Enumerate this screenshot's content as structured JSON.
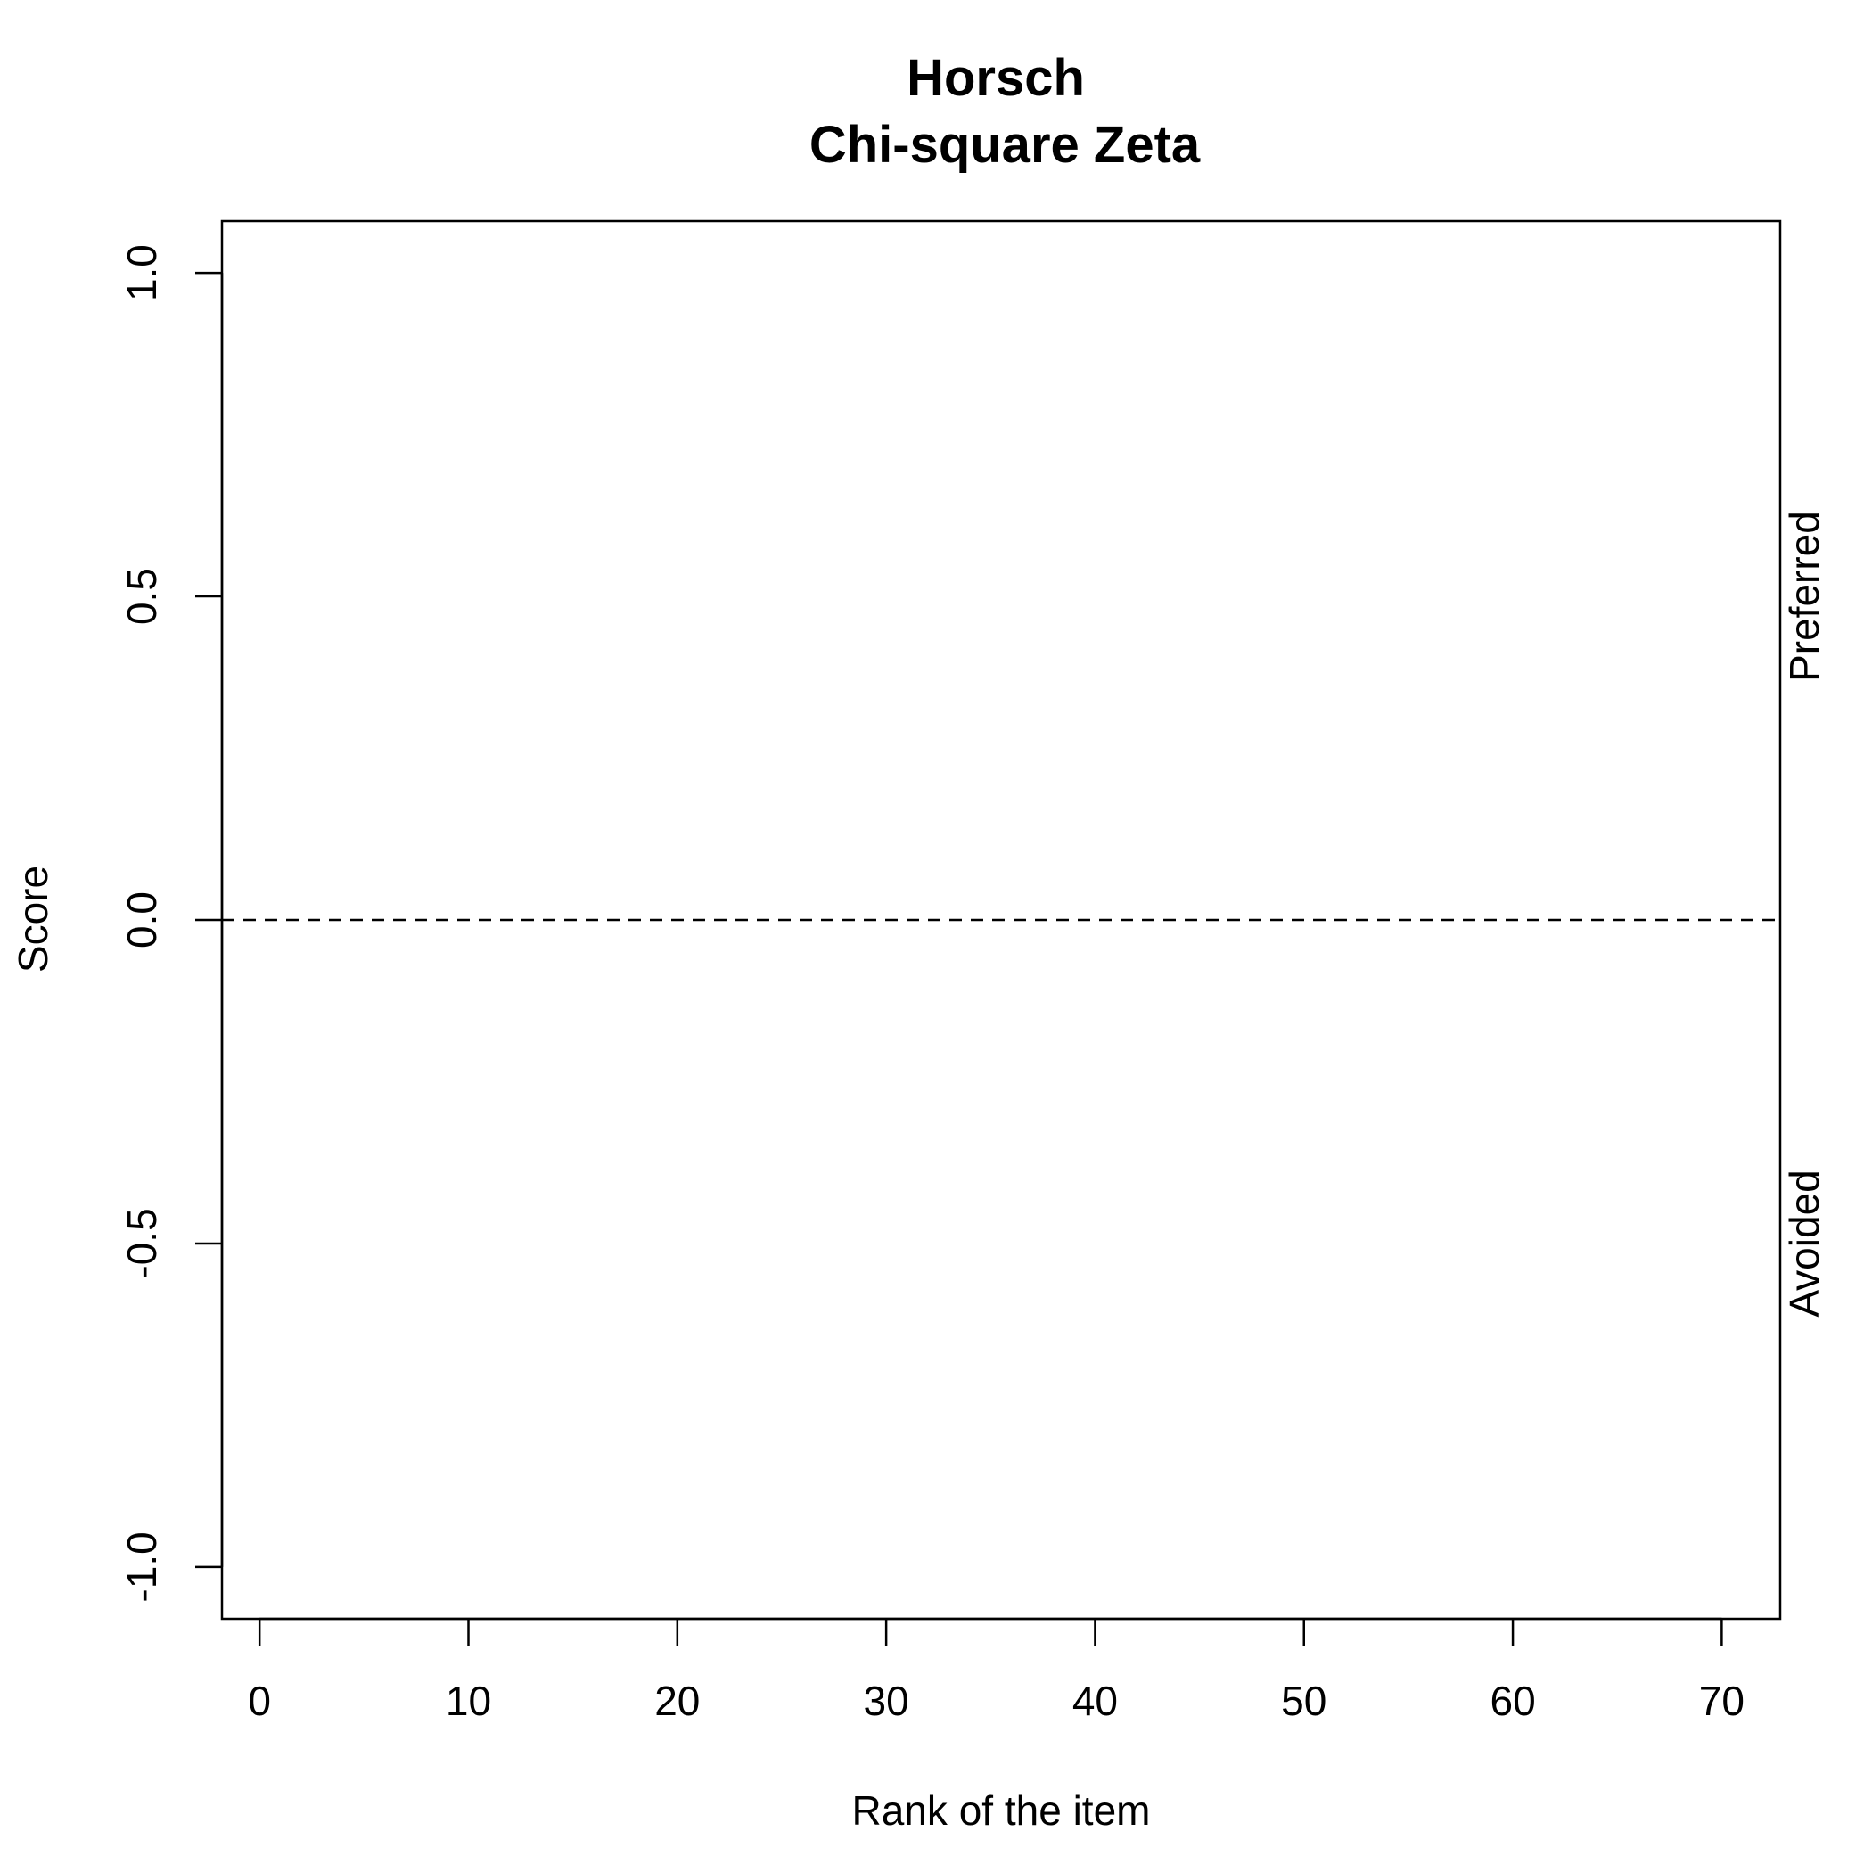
{
  "chart_data": {
    "type": "line",
    "title": "Horsch",
    "subtitle": "Chi-square Zeta",
    "xlabel": "Rank of the item",
    "ylabel": "Score",
    "xlim": [
      -1.8,
      72.8
    ],
    "ylim": [
      -1.08,
      1.08
    ],
    "x_ticks": [
      0,
      10,
      20,
      30,
      40,
      50,
      60,
      70
    ],
    "x_tick_labels": [
      "0",
      "10",
      "20",
      "30",
      "40",
      "50",
      "60",
      "70"
    ],
    "y_ticks": [
      -1.0,
      -0.5,
      0.0,
      0.5,
      1.0
    ],
    "y_tick_labels": [
      "-1.0",
      "-0.5",
      "0.0",
      "0.5",
      "1.0"
    ],
    "reference_lines": [
      {
        "y": 0.0,
        "style": "dashed"
      }
    ],
    "right_labels": [
      {
        "text": "Preferred",
        "y": 0.5
      },
      {
        "text": "Avoided",
        "y": -0.5
      }
    ],
    "series": [],
    "grid": false,
    "legend": "none"
  }
}
